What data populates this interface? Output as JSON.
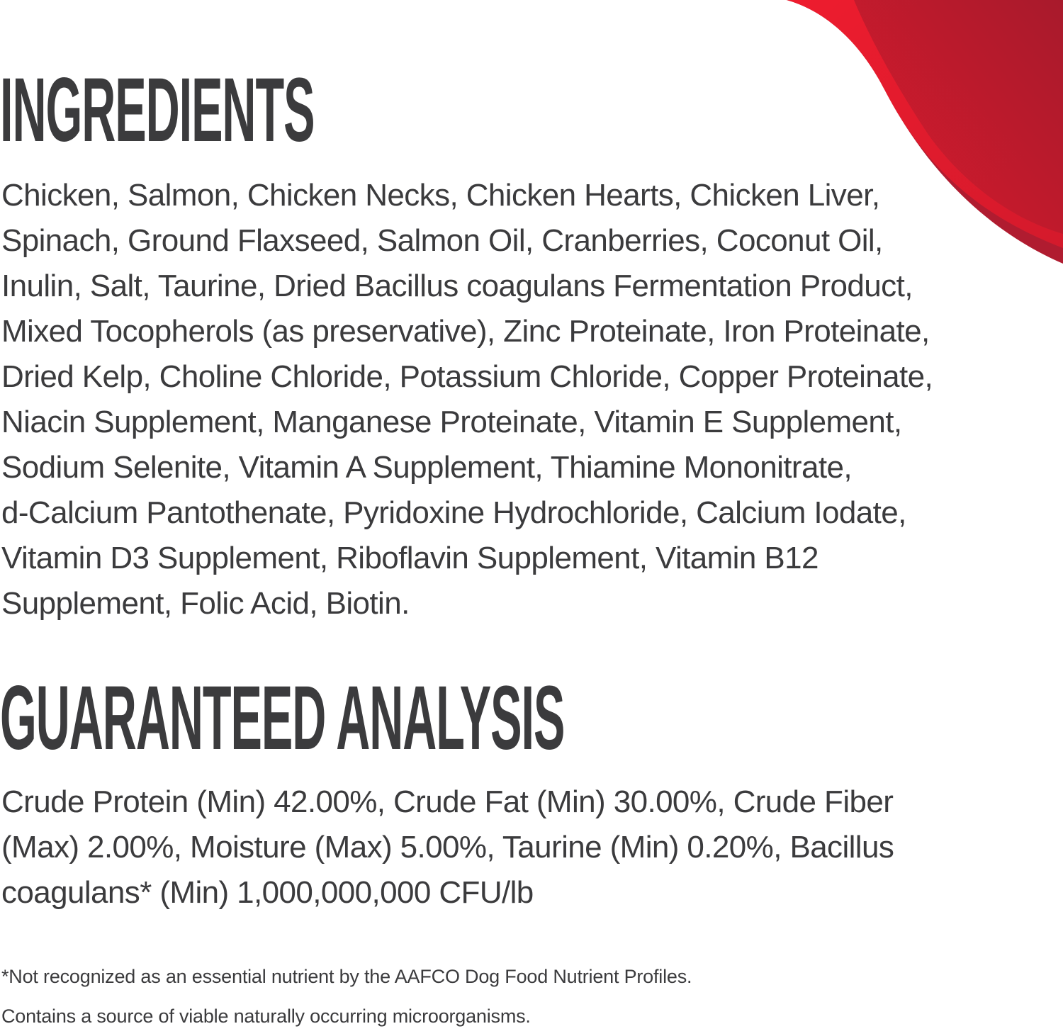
{
  "colors": {
    "text": "#3b3b3d",
    "accent_red": "#e8192c",
    "accent_dark_red": "#a81a2e"
  },
  "ingredients": {
    "title": "INGREDIENTS",
    "lines": [
      "Chicken, Salmon, Chicken Necks, Chicken Hearts, Chicken Liver,",
      "Spinach, Ground Flaxseed, Salmon Oil, Cranberries, Coconut Oil,",
      "Inulin, Salt, Taurine, Dried Bacillus coagulans Fermentation Product,",
      "Mixed Tocopherols (as preservative), Zinc Proteinate, Iron Proteinate,",
      "Dried Kelp, Choline Chloride, Potassium Chloride, Copper Proteinate,",
      "Niacin Supplement, Manganese Proteinate, Vitamin E Supplement,",
      "Sodium Selenite, Vitamin A Supplement, Thiamine Mononitrate,",
      "d-Calcium Pantothenate, Pyridoxine Hydrochloride, Calcium Iodate,",
      "Vitamin D3 Supplement, Riboflavin Supplement, Vitamin B12",
      "Supplement, Folic Acid, Biotin."
    ]
  },
  "analysis": {
    "title": "GUARANTEED ANALYSIS",
    "lines": [
      "Crude Protein (Min) 42.00%, Crude Fat (Min) 30.00%, Crude Fiber",
      "(Max) 2.00%, Moisture (Max) 5.00%, Taurine (Min) 0.20%, Bacillus",
      "coagulans* (Min) 1,000,000,000 CFU/lb"
    ]
  },
  "footnotes": [
    "*Not recognized as an essential nutrient by the AAFCO Dog Food Nutrient Profiles.",
    "Contains a source of viable naturally occurring microorganisms."
  ]
}
